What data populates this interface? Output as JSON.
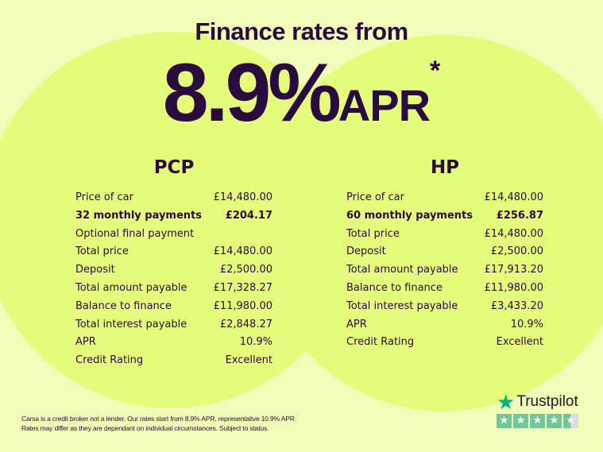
{
  "header": {
    "title": "Finance rates from",
    "rate": "8.9%",
    "rate_suffix": "APR",
    "asterisk": "*"
  },
  "plans": [
    {
      "name": "PCP",
      "rows": [
        {
          "label": "Price of car",
          "value": "£14,480.00",
          "bold": false
        },
        {
          "label": "32 monthly payments",
          "value": "£204.17",
          "bold": true
        },
        {
          "label": "Optional final payment",
          "value": "",
          "bold": false
        },
        {
          "label": "Total price",
          "value": "£14,480.00",
          "bold": false
        },
        {
          "label": "Deposit",
          "value": "£2,500.00",
          "bold": false
        },
        {
          "label": "Total amount payable",
          "value": "£17,328.27",
          "bold": false
        },
        {
          "label": "Balance to finance",
          "value": "£11,980.00",
          "bold": false
        },
        {
          "label": "Total interest payable",
          "value": "£2,848.27",
          "bold": false
        },
        {
          "label": "APR",
          "value": "10.9%",
          "bold": false
        },
        {
          "label": "Credit Rating",
          "value": "Excellent",
          "bold": false
        }
      ]
    },
    {
      "name": "HP",
      "rows": [
        {
          "label": "Price of car",
          "value": "£14,480.00",
          "bold": false
        },
        {
          "label": "60 monthly payments",
          "value": "£256.87",
          "bold": true
        },
        {
          "label": "Total price",
          "value": "£14,480.00",
          "bold": false
        },
        {
          "label": "Deposit",
          "value": "£2,500.00",
          "bold": false
        },
        {
          "label": "Total amount payable",
          "value": "£17,913.20",
          "bold": false
        },
        {
          "label": "Balance to finance",
          "value": "£11,980.00",
          "bold": false
        },
        {
          "label": "Total interest payable",
          "value": "£3,433.20",
          "bold": false
        },
        {
          "label": "APR",
          "value": "10.9%",
          "bold": false
        },
        {
          "label": "Credit Rating",
          "value": "Excellent",
          "bold": false
        }
      ]
    }
  ],
  "footer": {
    "disclaimer_line1": "Carsa is a credit broker not a lender. Our rates start from 8.9% APR, representative 10.9% APR.",
    "disclaimer_line2": "Rates may differ as they are dependant on individual circumstances. Subject to status.",
    "trustpilot": {
      "brand": "Trustpilot",
      "icon": "star-icon",
      "rating_stars": 4.5,
      "max_stars": 5,
      "color": "#00b67a"
    }
  },
  "colors": {
    "background": "#f1fcb8",
    "circle": "#e5fb7c",
    "text": "#2a0b3d"
  }
}
